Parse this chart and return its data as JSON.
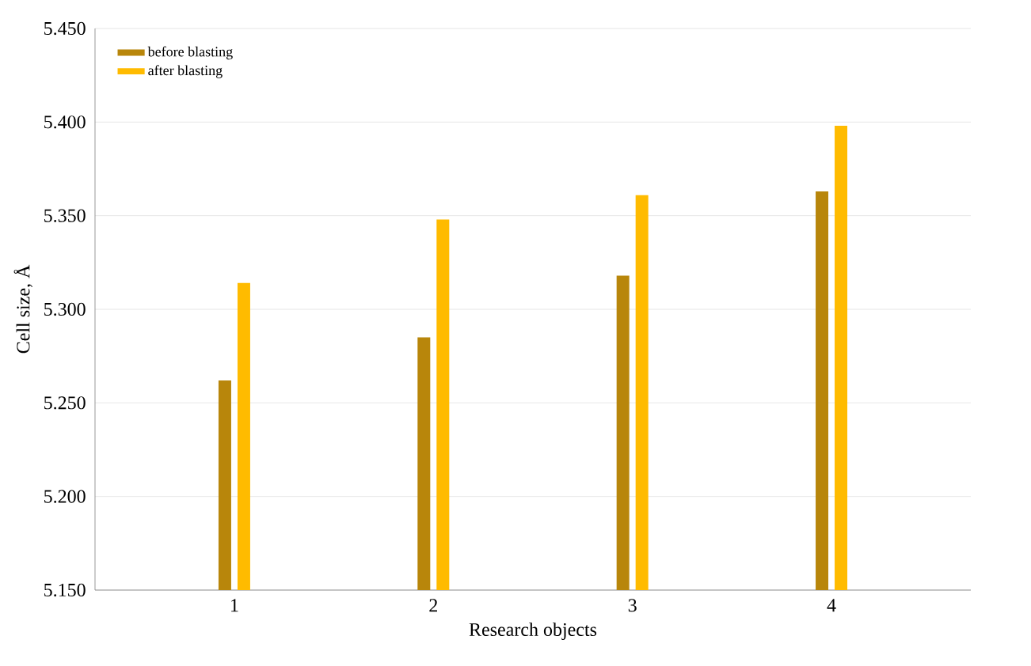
{
  "chart_data": {
    "type": "bar",
    "xlabel": "Research objects",
    "ylabel": "Cell size, Å",
    "categories": [
      "1",
      "2",
      "3",
      "4"
    ],
    "series": [
      {
        "name": "before blasting",
        "color": "#b8860b",
        "values": [
          5.262,
          5.285,
          5.318,
          5.363
        ]
      },
      {
        "name": "after blasting",
        "color": "#ffbb00",
        "values": [
          5.314,
          5.348,
          5.361,
          5.398
        ]
      }
    ],
    "ylim": [
      5.15,
      5.45
    ],
    "yticks": [
      {
        "value": 5.15,
        "label": "5.150"
      },
      {
        "value": 5.2,
        "label": "5.200"
      },
      {
        "value": 5.25,
        "label": "5.250"
      },
      {
        "value": 5.3,
        "label": "5.300"
      },
      {
        "value": 5.35,
        "label": "5.350"
      },
      {
        "value": 5.4,
        "label": "5.400"
      },
      {
        "value": 5.45,
        "label": "5.450"
      }
    ],
    "grid": "y",
    "legend": "top left"
  }
}
